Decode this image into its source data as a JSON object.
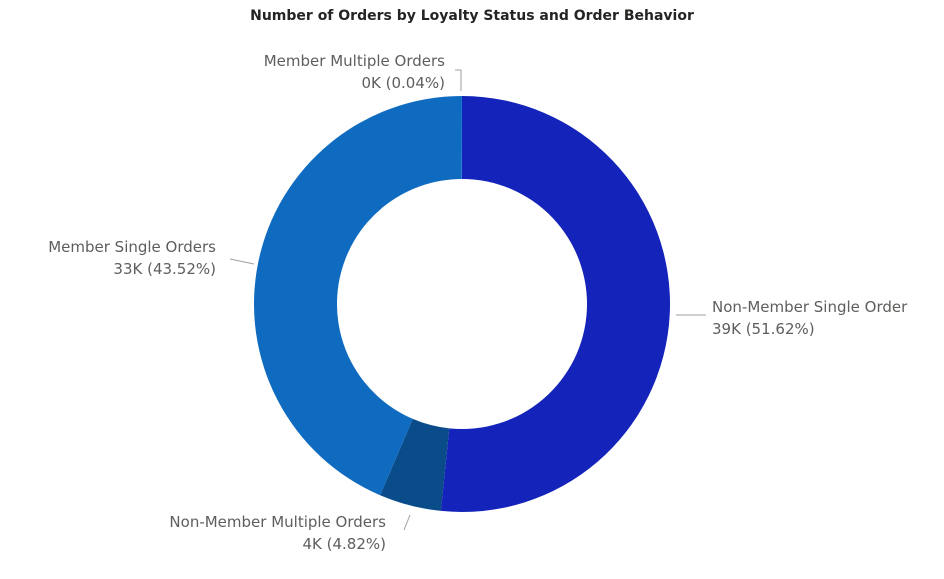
{
  "chart_data": {
    "type": "pie",
    "title": "Number of Orders by Loyalty Status and Order Behavior",
    "slices": [
      {
        "name": "Non-Member Single Order",
        "display": "39K (51.62%)",
        "percent": 51.62,
        "color": "#1423b9"
      },
      {
        "name": "Non-Member Multiple Orders",
        "display": "4K (4.82%)",
        "percent": 4.82,
        "color": "#0a4b8a"
      },
      {
        "name": "Member Single Orders",
        "display": "33K (43.52%)",
        "percent": 43.52,
        "color": "#0f6bc0"
      },
      {
        "name": "Member Multiple Orders",
        "display": "0K (0.04%)",
        "percent": 0.04,
        "color": "#1c7ed6"
      }
    ]
  }
}
